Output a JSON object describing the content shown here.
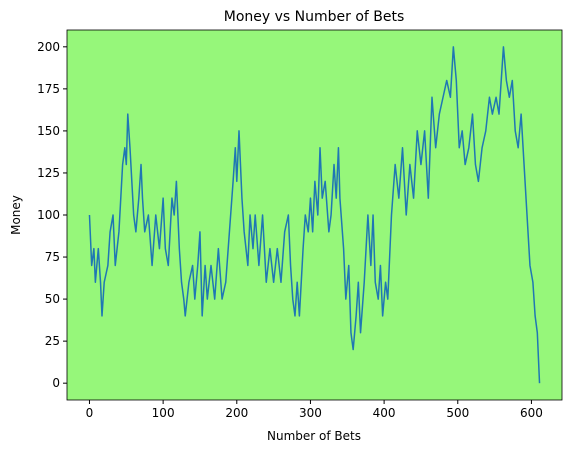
{
  "chart_data": {
    "type": "line",
    "title": "Money vs Number of Bets",
    "x_label": "Number of Bets",
    "y_label": "Money",
    "x": [
      0,
      3,
      6,
      8,
      12,
      15,
      17,
      20,
      25,
      28,
      32,
      35,
      40,
      45,
      48,
      50,
      52,
      55,
      60,
      63,
      67,
      70,
      72,
      75,
      80,
      85,
      90,
      95,
      100,
      103,
      107,
      112,
      115,
      118,
      122,
      125,
      128,
      130,
      135,
      140,
      143,
      147,
      150,
      153,
      157,
      160,
      165,
      170,
      175,
      180,
      185,
      190,
      195,
      198,
      200,
      203,
      207,
      210,
      215,
      218,
      222,
      225,
      230,
      235,
      240,
      245,
      250,
      255,
      260,
      265,
      270,
      273,
      276,
      279,
      282,
      285,
      290,
      293,
      297,
      300,
      303,
      306,
      310,
      313,
      316,
      320,
      325,
      328,
      332,
      335,
      338,
      340,
      345,
      348,
      352,
      355,
      358,
      362,
      365,
      368,
      373,
      378,
      382,
      385,
      388,
      392,
      395,
      398,
      402,
      405,
      410,
      415,
      420,
      425,
      430,
      435,
      440,
      445,
      450,
      455,
      460,
      465,
      470,
      475,
      480,
      485,
      490,
      494,
      498,
      502,
      506,
      510,
      515,
      520,
      524,
      528,
      533,
      538,
      543,
      547,
      552,
      556,
      562,
      566,
      570,
      574,
      578,
      582,
      586,
      590,
      594,
      598,
      602,
      605,
      608,
      611
    ],
    "values": [
      100,
      70,
      80,
      60,
      80,
      60,
      40,
      60,
      70,
      90,
      100,
      70,
      90,
      130,
      140,
      130,
      160,
      140,
      100,
      90,
      110,
      130,
      110,
      90,
      100,
      70,
      100,
      80,
      110,
      80,
      70,
      110,
      100,
      120,
      80,
      60,
      50,
      40,
      60,
      70,
      50,
      70,
      90,
      40,
      70,
      50,
      70,
      50,
      80,
      50,
      60,
      90,
      120,
      140,
      120,
      150,
      110,
      90,
      70,
      100,
      80,
      100,
      70,
      100,
      60,
      80,
      60,
      80,
      60,
      90,
      100,
      70,
      50,
      40,
      60,
      40,
      80,
      100,
      90,
      110,
      90,
      120,
      100,
      140,
      110,
      120,
      90,
      100,
      130,
      110,
      140,
      110,
      80,
      50,
      70,
      30,
      20,
      40,
      60,
      30,
      60,
      100,
      70,
      100,
      60,
      50,
      70,
      40,
      60,
      50,
      100,
      130,
      110,
      140,
      100,
      130,
      110,
      150,
      130,
      150,
      110,
      170,
      140,
      160,
      170,
      180,
      170,
      200,
      180,
      140,
      150,
      130,
      140,
      160,
      130,
      120,
      140,
      150,
      170,
      160,
      170,
      160,
      200,
      180,
      170,
      180,
      150,
      140,
      160,
      130,
      100,
      70,
      60,
      40,
      30,
      0
    ],
    "color": "#1f77b4",
    "background": "#96f77a",
    "xlim": [
      -30.5,
      641.5
    ],
    "ylim": [
      -10,
      210
    ],
    "xticks": [
      0,
      100,
      200,
      300,
      400,
      500,
      600
    ],
    "yticks": [
      0,
      25,
      50,
      75,
      100,
      125,
      150,
      175,
      200
    ]
  }
}
